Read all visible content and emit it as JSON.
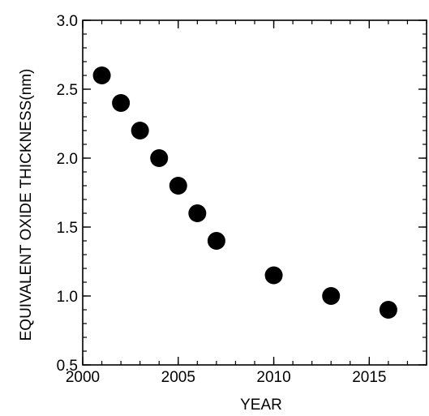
{
  "chart_data": {
    "type": "scatter",
    "title": "",
    "xlabel": "YEAR",
    "ylabel": "EQUIVALENT OXIDE THICKNESS(nm)",
    "xlim": [
      2000,
      2018
    ],
    "ylim": [
      0.5,
      3.0
    ],
    "xticks": [
      {
        "value": 2000,
        "label": "2000"
      },
      {
        "value": 2005,
        "label": "2005"
      },
      {
        "value": 2010,
        "label": "2010"
      },
      {
        "value": 2015,
        "label": "2015"
      }
    ],
    "yticks": [
      {
        "value": 0.5,
        "label": "0.5"
      },
      {
        "value": 1.0,
        "label": "1.0"
      },
      {
        "value": 1.5,
        "label": "1.5"
      },
      {
        "value": 2.0,
        "label": "2.0"
      },
      {
        "value": 2.5,
        "label": "2.5"
      },
      {
        "value": 3.0,
        "label": "3.0"
      }
    ],
    "minor_x_step": 1,
    "minor_y_step": 0.1,
    "grid": false,
    "marker_color": "#000000",
    "series": [
      {
        "points": [
          {
            "x": 2001,
            "y": 2.6
          },
          {
            "x": 2002,
            "y": 2.4
          },
          {
            "x": 2003,
            "y": 2.2
          },
          {
            "x": 2004,
            "y": 2.0
          },
          {
            "x": 2005,
            "y": 1.8
          },
          {
            "x": 2006,
            "y": 1.6
          },
          {
            "x": 2007,
            "y": 1.4
          },
          {
            "x": 2010,
            "y": 1.15
          },
          {
            "x": 2013,
            "y": 1.0
          },
          {
            "x": 2016,
            "y": 0.9
          }
        ]
      }
    ]
  }
}
